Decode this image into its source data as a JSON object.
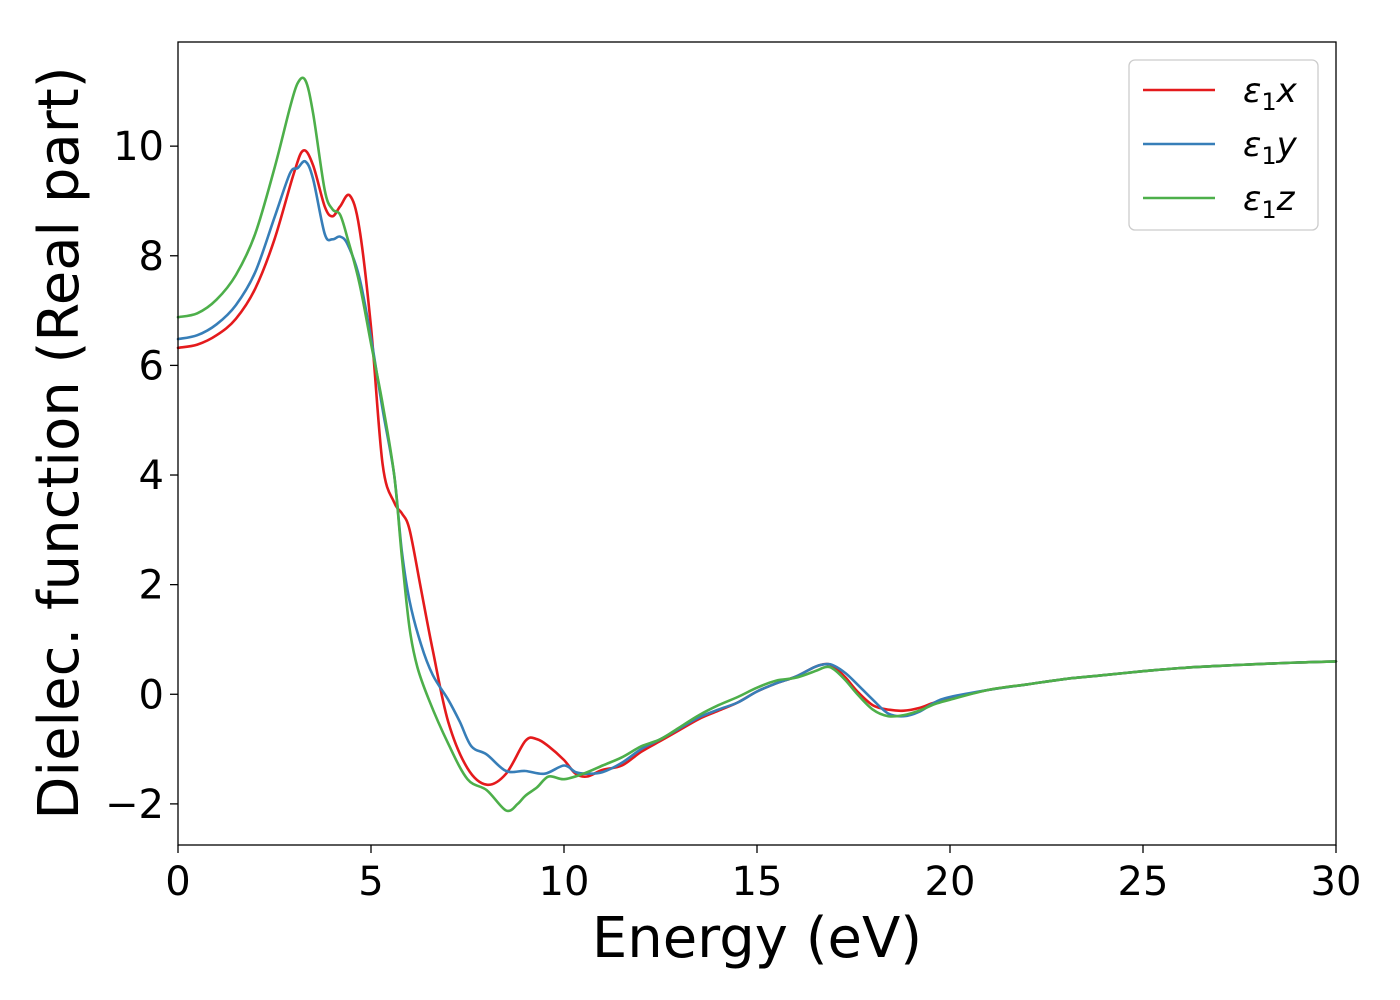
{
  "chart_data": {
    "type": "line",
    "xlabel": "Energy (eV)",
    "ylabel": "Dielec. function (Real part)",
    "xlim": [
      0,
      30
    ],
    "ylim": [
      -2.75,
      11.9
    ],
    "xticks": [
      0,
      5,
      10,
      15,
      20,
      25,
      30
    ],
    "xtick_labels": [
      "0",
      "5",
      "10",
      "15",
      "20",
      "25",
      "30"
    ],
    "yticks": [
      -2,
      0,
      2,
      4,
      6,
      8,
      10
    ],
    "ytick_labels": [
      "−2",
      "0",
      "2",
      "4",
      "6",
      "8",
      "10"
    ],
    "grid": false,
    "legend_position": "top-right",
    "series": [
      {
        "name": "ε1x",
        "legend_base": "ε",
        "legend_sub": "1",
        "legend_var": "x",
        "color": "#e41a1c",
        "x": [
          0,
          0.5,
          1.0,
          1.5,
          2.0,
          2.5,
          3.0,
          3.25,
          3.5,
          3.8,
          4.0,
          4.2,
          4.45,
          4.7,
          5.0,
          5.3,
          5.6,
          5.8,
          6.0,
          6.3,
          6.6,
          7.0,
          7.5,
          8.0,
          8.5,
          9.0,
          9.3,
          9.6,
          10.0,
          10.3,
          10.6,
          11.0,
          11.5,
          12.0,
          12.5,
          13.0,
          13.5,
          14.0,
          14.5,
          15.0,
          15.5,
          16.0,
          16.5,
          16.8,
          17.0,
          17.3,
          17.6,
          18.0,
          18.4,
          18.8,
          19.2,
          19.6,
          20.0,
          21.0,
          22.0,
          23.0,
          24.0,
          25.0,
          26.0,
          27.0,
          28.0,
          29.0,
          30.0
        ],
        "y": [
          6.32,
          6.38,
          6.55,
          6.85,
          7.4,
          8.3,
          9.5,
          9.92,
          9.65,
          8.9,
          8.72,
          8.9,
          9.1,
          8.5,
          6.7,
          4.2,
          3.5,
          3.3,
          3.0,
          1.9,
          0.8,
          -0.5,
          -1.35,
          -1.65,
          -1.45,
          -0.85,
          -0.82,
          -0.95,
          -1.2,
          -1.45,
          -1.5,
          -1.38,
          -1.3,
          -1.05,
          -0.85,
          -0.65,
          -0.45,
          -0.3,
          -0.15,
          0.05,
          0.2,
          0.32,
          0.5,
          0.55,
          0.5,
          0.3,
          0.05,
          -0.2,
          -0.28,
          -0.3,
          -0.25,
          -0.15,
          -0.08,
          0.08,
          0.18,
          0.28,
          0.35,
          0.42,
          0.48,
          0.52,
          0.55,
          0.58,
          0.6
        ]
      },
      {
        "name": "ε1y",
        "legend_base": "ε",
        "legend_sub": "1",
        "legend_var": "y",
        "color": "#377eb8",
        "x": [
          0,
          0.5,
          1.0,
          1.5,
          2.0,
          2.5,
          2.9,
          3.1,
          3.3,
          3.5,
          3.8,
          4.0,
          4.2,
          4.4,
          4.7,
          5.0,
          5.3,
          5.6,
          5.8,
          6.0,
          6.3,
          6.6,
          7.0,
          7.3,
          7.6,
          8.0,
          8.5,
          9.0,
          9.5,
          10.0,
          10.3,
          10.6,
          11.0,
          11.5,
          12.0,
          12.5,
          13.0,
          13.5,
          14.0,
          14.5,
          15.0,
          15.5,
          16.0,
          16.5,
          16.8,
          17.0,
          17.3,
          17.6,
          18.0,
          18.4,
          18.8,
          19.2,
          19.6,
          20.0,
          21.0,
          22.0,
          23.0,
          24.0,
          25.0,
          26.0,
          27.0,
          28.0,
          29.0,
          30.0
        ],
        "y": [
          6.48,
          6.55,
          6.75,
          7.1,
          7.7,
          8.7,
          9.5,
          9.6,
          9.72,
          9.4,
          8.4,
          8.3,
          8.35,
          8.2,
          7.6,
          6.5,
          5.2,
          4.0,
          2.6,
          1.7,
          0.9,
          0.35,
          -0.1,
          -0.5,
          -0.95,
          -1.1,
          -1.4,
          -1.4,
          -1.45,
          -1.3,
          -1.42,
          -1.45,
          -1.42,
          -1.25,
          -1.0,
          -0.82,
          -0.62,
          -0.42,
          -0.28,
          -0.15,
          0.05,
          0.2,
          0.32,
          0.5,
          0.55,
          0.52,
          0.38,
          0.18,
          -0.1,
          -0.35,
          -0.4,
          -0.32,
          -0.15,
          -0.05,
          0.08,
          0.18,
          0.28,
          0.35,
          0.42,
          0.48,
          0.52,
          0.55,
          0.58,
          0.6
        ]
      },
      {
        "name": "ε1z",
        "legend_base": "ε",
        "legend_sub": "1",
        "legend_var": "z",
        "color": "#4daf4a",
        "x": [
          0,
          0.5,
          1.0,
          1.5,
          2.0,
          2.5,
          2.9,
          3.1,
          3.3,
          3.5,
          3.8,
          4.0,
          4.2,
          4.4,
          4.7,
          5.0,
          5.3,
          5.6,
          5.8,
          6.0,
          6.2,
          6.5,
          7.0,
          7.5,
          8.0,
          8.5,
          8.8,
          9.0,
          9.3,
          9.6,
          10.0,
          10.5,
          11.0,
          11.5,
          12.0,
          12.5,
          13.0,
          13.5,
          14.0,
          14.5,
          15.0,
          15.5,
          16.0,
          16.5,
          16.8,
          17.0,
          17.3,
          17.6,
          18.0,
          18.4,
          18.8,
          19.2,
          19.6,
          20.0,
          21.0,
          22.0,
          23.0,
          24.0,
          25.0,
          26.0,
          27.0,
          28.0,
          29.0,
          30.0
        ],
        "y": [
          6.88,
          6.95,
          7.2,
          7.65,
          8.4,
          9.6,
          10.7,
          11.15,
          11.2,
          10.6,
          9.2,
          8.85,
          8.75,
          8.3,
          7.5,
          6.4,
          5.3,
          4.0,
          2.5,
          1.2,
          0.5,
          -0.1,
          -0.9,
          -1.55,
          -1.75,
          -2.12,
          -2.0,
          -1.85,
          -1.7,
          -1.5,
          -1.55,
          -1.45,
          -1.3,
          -1.15,
          -0.95,
          -0.82,
          -0.6,
          -0.38,
          -0.2,
          -0.05,
          0.12,
          0.25,
          0.3,
          0.42,
          0.5,
          0.45,
          0.25,
          0.0,
          -0.28,
          -0.4,
          -0.38,
          -0.3,
          -0.18,
          -0.1,
          0.08,
          0.18,
          0.28,
          0.35,
          0.42,
          0.48,
          0.52,
          0.55,
          0.58,
          0.6
        ]
      }
    ]
  }
}
